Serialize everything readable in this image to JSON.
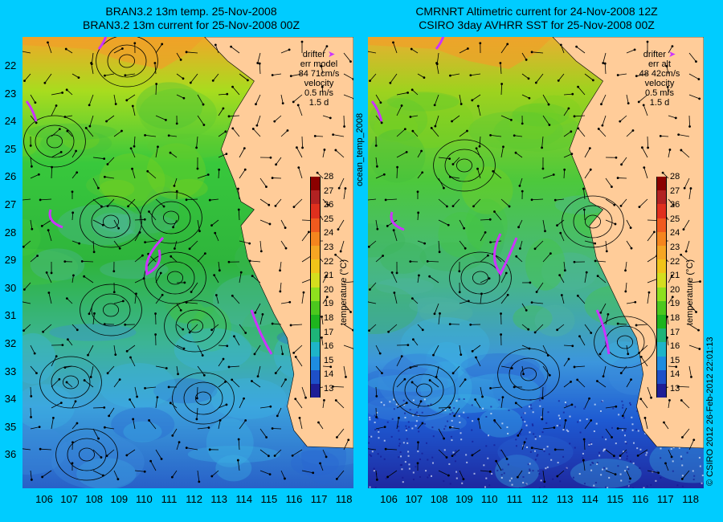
{
  "left_panel": {
    "title_line1": "BRAN3.2 13m temp. 25-Nov-2008",
    "title_line2": "BRAN3.2 13m current for 25-Nov-2008 00Z",
    "legend": {
      "drifter": "drifter",
      "err_label": "err model",
      "err_value": "84 71cm/s",
      "velocity": "velocity",
      "velocity_scale": "0.5 m/s",
      "duration": "1.5 d"
    }
  },
  "right_panel": {
    "title_line1": "CMRNRT Altimetric current for 24-Nov-2008 12Z",
    "title_line2": "CSIRO 3day AVHRR SST for 25-Nov-2008 00Z",
    "legend": {
      "drifter": "drifter",
      "err_label": "err alt",
      "err_value": "48 42cm/s",
      "velocity": "velocity",
      "velocity_scale": "0.5 m/s",
      "duration": "1.5 d"
    }
  },
  "latitudes": [
    "22",
    "23",
    "24",
    "25",
    "26",
    "27",
    "28",
    "29",
    "30",
    "31",
    "32",
    "33",
    "34",
    "35",
    "36"
  ],
  "longitudes": [
    "106",
    "107",
    "108",
    "109",
    "110",
    "111",
    "112",
    "113",
    "114",
    "115",
    "116",
    "117",
    "118"
  ],
  "colorbar": {
    "ticks": [
      "28",
      "27",
      "26",
      "25",
      "24",
      "23",
      "22",
      "21",
      "20",
      "19",
      "18",
      "17",
      "16",
      "15",
      "14",
      "13"
    ],
    "label": "temperature (°C)"
  },
  "side_labels": {
    "middle": "ocean_temp_2008",
    "right": "© CSIRO 2012   26-Feb-2012 22:01:13"
  },
  "colors": {
    "background": "#00ccff",
    "land": "#ffcc99",
    "drifter": "#cc33ff"
  }
}
